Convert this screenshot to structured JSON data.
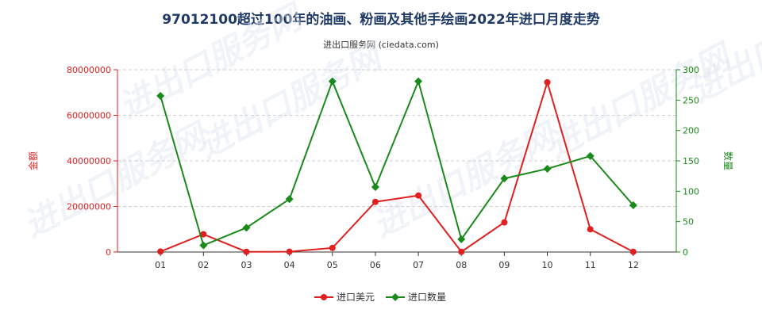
{
  "chart_data": {
    "type": "line",
    "title": "97012100超过100年的油画、粉画及其他手绘画2022年进口月度走势",
    "subtitle": "进出口服务网 (ciedata.com)",
    "categories": [
      "01",
      "02",
      "03",
      "04",
      "05",
      "06",
      "07",
      "08",
      "09",
      "10",
      "11",
      "12"
    ],
    "left_axis": {
      "label": "金额",
      "range": [
        0,
        80000000
      ],
      "ticks": [
        "0",
        "20000000",
        "40000000",
        "60000000",
        "80000000"
      ],
      "color": "#e02020"
    },
    "right_axis": {
      "label": "数量",
      "range": [
        0,
        300
      ],
      "ticks": [
        "0",
        "50",
        "100",
        "150",
        "200",
        "250",
        "300"
      ],
      "color": "#1a8a1a"
    },
    "series": [
      {
        "name": "进口美元",
        "axis": "left",
        "color": "#e02020",
        "marker": "circle",
        "values": [
          200000,
          7800000,
          100000,
          150000,
          1800000,
          22000000,
          24800000,
          100000,
          13000000,
          74500000,
          10000000,
          100000
        ]
      },
      {
        "name": "进口数量",
        "axis": "right",
        "color": "#1a8a1a",
        "marker": "diamond",
        "values": [
          257,
          11,
          40,
          87,
          281,
          107,
          281,
          21,
          121,
          137,
          158,
          77
        ]
      }
    ],
    "legend_position": "bottom",
    "grid": "horizontal",
    "watermark": "进出口服务网"
  }
}
